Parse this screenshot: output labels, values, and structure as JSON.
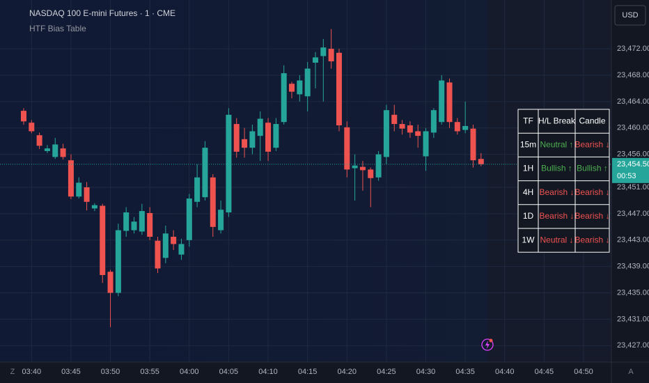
{
  "chart_data": {
    "type": "candlestick",
    "title": "NASDAQ 100 E-mini Futures · 1 · CME",
    "subtitle": "HTF Bias Table",
    "up_color": "#26a69a",
    "down_color": "#ef5350",
    "x": [
      "03:39",
      "03:40",
      "03:41",
      "03:42",
      "03:43",
      "03:44",
      "03:45",
      "03:46",
      "03:47",
      "03:48",
      "03:49",
      "03:50",
      "03:51",
      "03:52",
      "03:53",
      "03:54",
      "03:55",
      "03:56",
      "03:57",
      "03:58",
      "03:59",
      "04:00",
      "04:01",
      "04:02",
      "04:03",
      "04:04",
      "04:05",
      "04:06",
      "04:07",
      "04:08",
      "04:09",
      "04:10",
      "04:11",
      "04:12",
      "04:13",
      "04:14",
      "04:15",
      "04:16",
      "04:17",
      "04:18",
      "04:19",
      "04:20",
      "04:21",
      "04:22",
      "04:23",
      "04:24",
      "04:25",
      "04:26",
      "04:27",
      "04:28",
      "04:29",
      "04:30",
      "04:31",
      "04:32",
      "04:33",
      "04:34",
      "04:35",
      "04:36",
      "04:37"
    ],
    "open": [
      23462.6,
      23460.8,
      23458.9,
      23456.5,
      23455.6,
      23456.9,
      23455.1,
      23449.6,
      23451.0,
      23447.8,
      23448.2,
      23438.2,
      23435.0,
      23444.4,
      23444.5,
      23444.3,
      23447.1,
      23442.9,
      23440.3,
      23443.5,
      23440.8,
      23443.0,
      23448.8,
      23449.5,
      23452.5,
      23444.5,
      23447.2,
      23460.6,
      23458.3,
      23457.0,
      23458.8,
      23460.8,
      23457.0,
      23460.9,
      23466.7,
      23465.1,
      23464.8,
      23469.9,
      23470.9,
      23472.0,
      23471.4,
      23460.1,
      23453.9,
      23454.1,
      23453.7,
      23452.5,
      23455.6,
      23462.0,
      23460.6,
      23460.4,
      23459.5,
      23455.7,
      23459.3,
      23460.9,
      23466.9,
      23460.9,
      23459.7,
      23459.9,
      23455.3
    ],
    "high": [
      23463.0,
      23461.2,
      23459.3,
      23457.4,
      23458.5,
      23457.6,
      23456.0,
      23452.5,
      23451.8,
      23448.6,
      23448.5,
      23438.5,
      23445.5,
      23448.0,
      23446.5,
      23448.5,
      23448.0,
      23443.5,
      23445.2,
      23444.5,
      23443.2,
      23450.0,
      23454.5,
      23458.0,
      23453.0,
      23449.0,
      23463.0,
      23461.5,
      23460.0,
      23460.5,
      23462.5,
      23461.5,
      23461.5,
      23469.5,
      23467.0,
      23468.0,
      23470.0,
      23471.5,
      23473.5,
      23475.0,
      23472.0,
      23461.0,
      23456.0,
      23455.0,
      23454.0,
      23456.5,
      23463.5,
      23463.5,
      23461.2,
      23461.0,
      23460.5,
      23460.0,
      23463.0,
      23468.0,
      23467.5,
      23461.5,
      23464.0,
      23460.5,
      23456.2
    ],
    "low": [
      23460.5,
      23459.2,
      23456.8,
      23456.2,
      23455.3,
      23455.2,
      23449.2,
      23449.3,
      23447.5,
      23447.4,
      23436.5,
      23429.8,
      23434.5,
      23443.5,
      23444.0,
      23443.8,
      23443.0,
      23438.0,
      23439.5,
      23441.5,
      23440.0,
      23442.0,
      23448.0,
      23449.0,
      23443.5,
      23444.0,
      23446.5,
      23455.5,
      23455.5,
      23456.0,
      23455.0,
      23455.0,
      23456.5,
      23460.5,
      23464.5,
      23464.0,
      23462.5,
      23466.0,
      23464.0,
      23469.0,
      23459.5,
      23452.5,
      23449.0,
      23450.5,
      23448.0,
      23452.0,
      23454.5,
      23459.5,
      23459.0,
      23458.5,
      23457.0,
      23453.5,
      23458.5,
      23460.5,
      23460.0,
      23459.0,
      23459.2,
      23454.0,
      23454.2
    ],
    "close": [
      23461.0,
      23459.5,
      23457.3,
      23456.9,
      23457.5,
      23455.6,
      23449.6,
      23451.7,
      23448.8,
      23448.3,
      23437.7,
      23435.0,
      23444.5,
      23447.2,
      23445.8,
      23447.4,
      23443.5,
      23438.7,
      23444.0,
      23442.4,
      23442.4,
      23449.3,
      23452.5,
      23457.0,
      23445.0,
      23447.6,
      23462.0,
      23456.4,
      23457.0,
      23459.5,
      23461.4,
      23456.4,
      23460.6,
      23468.3,
      23465.5,
      23467.2,
      23469.0,
      23470.7,
      23472.2,
      23470.1,
      23460.4,
      23453.7,
      23454.3,
      23453.6,
      23452.4,
      23456.0,
      23462.7,
      23460.6,
      23459.9,
      23459.3,
      23458.8,
      23459.5,
      23462.7,
      23467.2,
      23460.9,
      23459.5,
      23460.3,
      23455.1,
      23454.5
    ],
    "xlim": [
      "03:36",
      "04:53"
    ],
    "xticks": [
      "03:40",
      "03:45",
      "03:50",
      "03:55",
      "04:00",
      "04:05",
      "04:10",
      "04:15",
      "04:20",
      "04:25",
      "04:30",
      "04:35",
      "04:40",
      "04:45",
      "04:50"
    ],
    "ylim": [
      23424.5,
      23479.4
    ],
    "yticks": [
      {
        "value": 23472,
        "label": "23,472.00"
      },
      {
        "value": 23468,
        "label": "23,468.00"
      },
      {
        "value": 23464,
        "label": "23,464.00"
      },
      {
        "value": 23460,
        "label": "23,460.00"
      },
      {
        "value": 23456,
        "label": "23,456.00"
      },
      {
        "value": 23451,
        "label": "23,451.00"
      },
      {
        "value": 23447,
        "label": "23,447.00"
      },
      {
        "value": 23443,
        "label": "23,443.00"
      },
      {
        "value": 23439,
        "label": "23,439.00"
      },
      {
        "value": 23435,
        "label": "23,435.00"
      },
      {
        "value": 23431,
        "label": "23,431.00"
      },
      {
        "value": 23427,
        "label": "23,427.00"
      }
    ],
    "grid": true,
    "last_price": {
      "value": 23454.5,
      "label": "23,454.50"
    },
    "countdown": "00:53",
    "currency": "USD",
    "table": {
      "header": [
        "TF",
        "H/L Break",
        "Candle"
      ],
      "rows": [
        [
          "15m",
          "Neutral ↑",
          "Bearish ↓"
        ],
        [
          "1H",
          "Bullish ↑",
          "Bullish ↑"
        ],
        [
          "4H",
          "Bearish ↓",
          "Bearish ↓"
        ],
        [
          "1D",
          "Bearish ↓",
          "Bearish ↓"
        ],
        [
          "1W",
          "Neutral ↓",
          "Bearish ↓"
        ]
      ],
      "cell_colors": [
        [
          "#ffffff",
          "#4caf50",
          "#ef5350"
        ],
        [
          "#ffffff",
          "#4caf50",
          "#4caf50"
        ],
        [
          "#ffffff",
          "#ef5350",
          "#ef5350"
        ],
        [
          "#ffffff",
          "#ef5350",
          "#ef5350"
        ],
        [
          "#ffffff",
          "#ef5350",
          "#ef5350"
        ]
      ]
    }
  },
  "toolbar": {
    "left": "Z",
    "right": "A"
  }
}
